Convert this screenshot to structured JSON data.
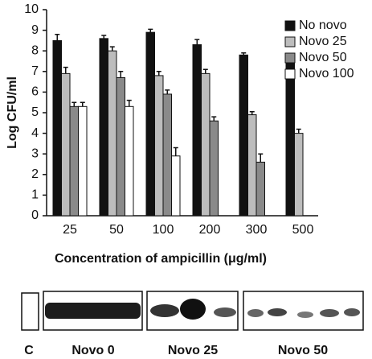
{
  "chart_data": {
    "type": "bar",
    "y_label": "Log CFU/ml",
    "x_label": "Concentration of ampicillin (μg/ml)",
    "categories": [
      "25",
      "50",
      "100",
      "200",
      "300",
      "500"
    ],
    "series": [
      {
        "name": "No novo",
        "color": "#111111",
        "values": [
          8.5,
          8.6,
          8.9,
          8.3,
          7.8,
          7.6
        ],
        "errors": [
          0.3,
          0.15,
          0.15,
          0.25,
          0.1,
          0.1
        ]
      },
      {
        "name": "Novo 25",
        "color": "#bdbdbd",
        "values": [
          6.9,
          8.0,
          6.8,
          6.9,
          4.9,
          4.0
        ],
        "errors": [
          0.3,
          0.2,
          0.2,
          0.2,
          0.15,
          0.2
        ]
      },
      {
        "name": "Novo 50",
        "color": "#8a8a8a",
        "values": [
          5.3,
          6.7,
          5.9,
          4.6,
          2.6,
          null
        ],
        "errors": [
          0.2,
          0.3,
          0.2,
          0.2,
          0.4,
          null
        ]
      },
      {
        "name": "Novo 100",
        "color": "#ffffff",
        "values": [
          5.3,
          5.3,
          2.9,
          null,
          null,
          null
        ],
        "errors": [
          0.2,
          0.3,
          0.4,
          null,
          null,
          null
        ]
      }
    ],
    "ylim": [
      0,
      10
    ],
    "yticks": [
      0,
      1,
      2,
      3,
      4,
      5,
      6,
      7,
      8,
      9,
      10
    ],
    "grid": false,
    "legend": "top-right"
  },
  "gel_labels": [
    "C",
    "Novo 0",
    "Novo 25",
    "Novo 50"
  ]
}
